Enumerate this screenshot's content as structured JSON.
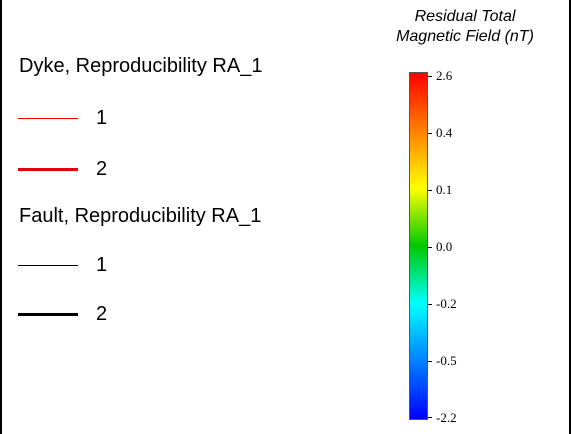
{
  "legend": {
    "dyke_heading": "Dyke, Reproducibility RA_1",
    "dyke_items": [
      {
        "label": "1",
        "color": "#ff0000"
      },
      {
        "label": "2",
        "color": "#e60000"
      }
    ],
    "fault_heading": "Fault, Reproducibility RA_1",
    "fault_items": [
      {
        "label": "1",
        "color": "#000000"
      },
      {
        "label": "2",
        "color": "#000000"
      }
    ]
  },
  "colorbar": {
    "title_line1": "Residual Total",
    "title_line2": "Magnetic Field (nT)",
    "ticks": [
      "2.6",
      "0.4",
      "0.1",
      "0.0",
      "-0.2",
      "-0.5",
      "-2.2"
    ],
    "colors": [
      "#ff0000",
      "#ff8000",
      "#ffff00",
      "#00c800",
      "#00ffff",
      "#0080ff",
      "#0000ff"
    ]
  }
}
